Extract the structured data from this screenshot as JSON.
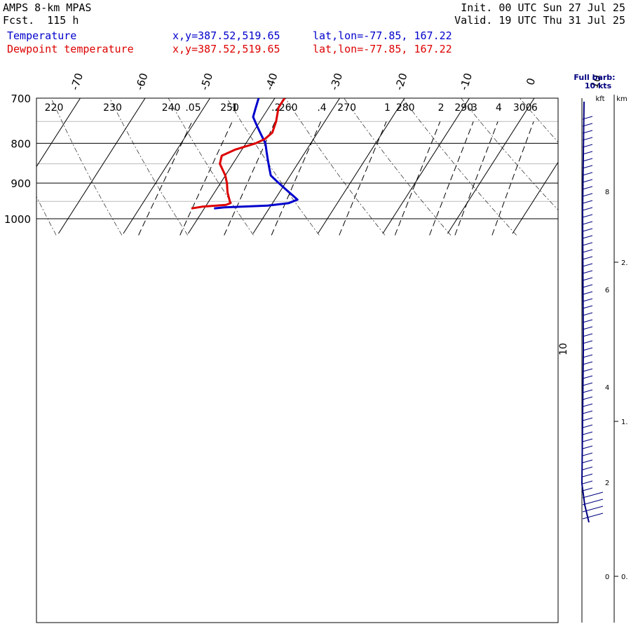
{
  "header": {
    "model": "AMPS 8-km MPAS",
    "fcst": "Fcst.  115 h",
    "init": "Init. 00 UTC Sun 27 Jul 25",
    "valid": "Valid. 19 UTC Thu 31 Jul 25",
    "temp_label": "Temperature",
    "dew_label": "Dewpoint temperature",
    "xy_temp": "x,y=387.52,519.65",
    "xy_dew": "x,y=387.52,519.65",
    "latlon_temp": "lat,lon=-77.85, 167.22",
    "latlon_dew": "lat,lon=-77.85, 167.22"
  },
  "colors": {
    "temperature": "#0000cc",
    "dewpoint": "#dd0000",
    "grid": "#000000",
    "wind": "#000080",
    "gridline_light": "#bbbbbb"
  },
  "chart_data": {
    "type": "line",
    "subtype": "skew-T log-P sounding",
    "y_axis": {
      "quantity": "pressure (hPa)",
      "scale": "log",
      "range": [
        1040,
        700
      ],
      "major_ticks": [
        700,
        800,
        900,
        1000
      ],
      "minor_lines": [
        750,
        850,
        950
      ]
    },
    "isotherm_labels": [
      "-70",
      "-60",
      "-50",
      "-40",
      "-30",
      "-20",
      "-10",
      "0",
      "10"
    ],
    "isotherm_values": [
      -70,
      -60,
      -50,
      -40,
      -30,
      -20,
      -10,
      0,
      10
    ],
    "dry_adiabat_labels": [
      "220",
      "230",
      "240",
      "250",
      "260",
      "270",
      "280",
      "290",
      "300"
    ],
    "dry_adiabat_values": [
      220,
      230,
      240,
      250,
      260,
      270,
      280,
      290,
      300
    ],
    "mixing_ratio_labels": [
      ".05",
      ".1",
      ".2",
      ".4",
      "1",
      "2",
      "3",
      "4",
      "6"
    ],
    "mixing_ratio_values": [
      0.05,
      0.1,
      0.2,
      0.4,
      1,
      2,
      3,
      4,
      6
    ],
    "series": [
      {
        "name": "Temperature",
        "points": [
          {
            "p": 970,
            "t": -38.5
          },
          {
            "p": 967,
            "t": -37.0
          },
          {
            "p": 962,
            "t": -30.5
          },
          {
            "p": 955,
            "t": -27.5
          },
          {
            "p": 945,
            "t": -26.5
          },
          {
            "p": 935,
            "t": -27.5
          },
          {
            "p": 915,
            "t": -29.5
          },
          {
            "p": 895,
            "t": -31.5
          },
          {
            "p": 880,
            "t": -33.0
          },
          {
            "p": 860,
            "t": -34.0
          },
          {
            "p": 840,
            "t": -35.0
          },
          {
            "p": 820,
            "t": -36.0
          },
          {
            "p": 800,
            "t": -37.0
          },
          {
            "p": 780,
            "t": -38.5
          },
          {
            "p": 760,
            "t": -40.0
          },
          {
            "p": 740,
            "t": -41.5
          },
          {
            "p": 720,
            "t": -42.0
          },
          {
            "p": 700,
            "t": -42.5
          }
        ]
      },
      {
        "name": "Dewpoint temperature",
        "points": [
          {
            "p": 970,
            "t": -42.0
          },
          {
            "p": 965,
            "t": -40.5
          },
          {
            "p": 960,
            "t": -37.0
          },
          {
            "p": 955,
            "t": -36.5
          },
          {
            "p": 945,
            "t": -37.0
          },
          {
            "p": 925,
            "t": -38.0
          },
          {
            "p": 900,
            "t": -39.0
          },
          {
            "p": 880,
            "t": -40.0
          },
          {
            "p": 865,
            "t": -41.0
          },
          {
            "p": 850,
            "t": -42.0
          },
          {
            "p": 830,
            "t": -42.5
          },
          {
            "p": 815,
            "t": -41.0
          },
          {
            "p": 800,
            "t": -38.5
          },
          {
            "p": 790,
            "t": -37.5
          },
          {
            "p": 775,
            "t": -37.0
          },
          {
            "p": 750,
            "t": -37.5
          },
          {
            "p": 720,
            "t": -38.5
          },
          {
            "p": 700,
            "t": -38.5
          }
        ]
      }
    ],
    "wind_panel": {
      "title": "Full barb:",
      "subtitle": "10 kts",
      "kft_label": "kft",
      "km_label": "km",
      "kft_ticks": [
        "0",
        "2",
        "4",
        "6",
        "8"
      ],
      "km_ticks": [
        "0.",
        "1.",
        "2."
      ],
      "speed_label": "10"
    },
    "grid": true,
    "legend": "top-left"
  }
}
